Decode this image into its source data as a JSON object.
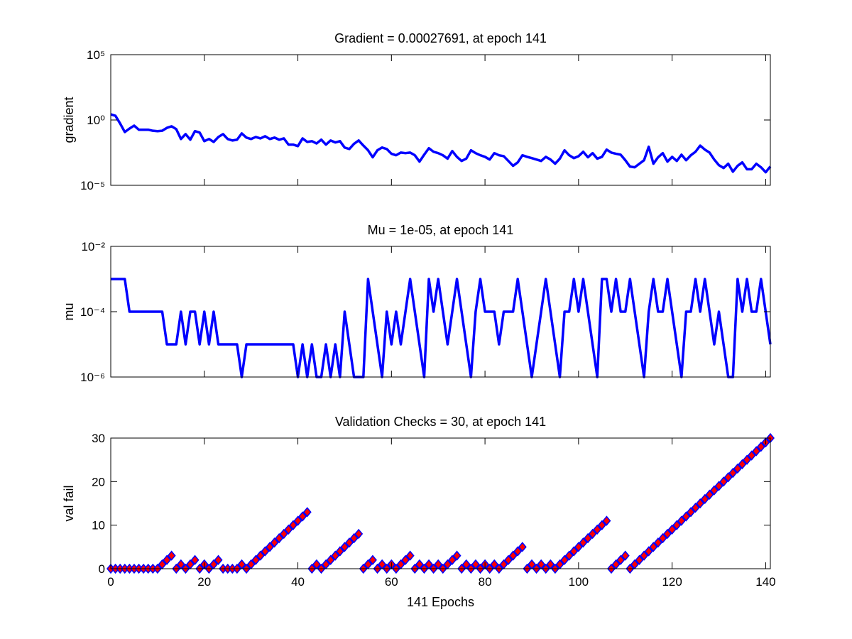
{
  "chart_data": [
    {
      "type": "line",
      "title": "Gradient = 0.00027691, at epoch 141",
      "y_label": "gradient",
      "yscale": "log",
      "xlim": [
        0,
        141
      ],
      "xticks": [
        0,
        20,
        40,
        60,
        80,
        100,
        120,
        140
      ],
      "xtick_labels": false,
      "ylim": [
        1e-05,
        100000
      ],
      "yticks": [
        {
          "value": 1e-05,
          "label": "10⁻⁵"
        },
        {
          "value": 1,
          "label": "10⁰"
        },
        {
          "value": 100000,
          "label": "10⁵"
        }
      ],
      "x": [
        0,
        1,
        2,
        3,
        4,
        5,
        6,
        7,
        8,
        9,
        10,
        11,
        12,
        13,
        14,
        15,
        16,
        17,
        18,
        19,
        20,
        21,
        22,
        23,
        24,
        25,
        26,
        27,
        28,
        29,
        30,
        31,
        32,
        33,
        34,
        35,
        36,
        37,
        38,
        39,
        40,
        41,
        42,
        43,
        44,
        45,
        46,
        47,
        48,
        49,
        50,
        51,
        52,
        53,
        54,
        55,
        56,
        57,
        58,
        59,
        60,
        61,
        62,
        63,
        64,
        65,
        66,
        67,
        68,
        69,
        70,
        71,
        72,
        73,
        74,
        75,
        76,
        77,
        78,
        79,
        80,
        81,
        82,
        83,
        84,
        85,
        86,
        87,
        88,
        89,
        90,
        91,
        92,
        93,
        94,
        95,
        96,
        97,
        98,
        99,
        100,
        101,
        102,
        103,
        104,
        105,
        106,
        107,
        108,
        109,
        110,
        111,
        112,
        113,
        114,
        115,
        116,
        117,
        118,
        119,
        120,
        121,
        122,
        123,
        124,
        125,
        126,
        127,
        128,
        129,
        130,
        131,
        132,
        133,
        134,
        135,
        136,
        137,
        138,
        139,
        140,
        141
      ],
      "series": [
        {
          "color": "#0000ff",
          "values": [
            2.7,
            2.1,
            0.54,
            0.12,
            0.22,
            0.37,
            0.18,
            0.18,
            0.18,
            0.15,
            0.14,
            0.15,
            0.25,
            0.33,
            0.2,
            0.035,
            0.083,
            0.031,
            0.14,
            0.11,
            0.024,
            0.035,
            0.021,
            0.05,
            0.083,
            0.035,
            0.027,
            0.031,
            0.094,
            0.045,
            0.035,
            0.05,
            0.039,
            0.057,
            0.035,
            0.045,
            0.031,
            0.039,
            0.013,
            0.013,
            0.01,
            0.039,
            0.021,
            0.024,
            0.016,
            0.031,
            0.013,
            0.027,
            0.019,
            0.024,
            0.0078,
            0.006,
            0.015,
            0.027,
            0.011,
            0.0048,
            0.0014,
            0.0048,
            0.0078,
            0.006,
            0.0026,
            0.002,
            0.0032,
            0.0029,
            0.0032,
            0.002,
            0.00065,
            0.0022,
            0.0069,
            0.0037,
            0.0029,
            0.002,
            0.0011,
            0.0042,
            0.0015,
            0.00073,
            0.0011,
            0.0048,
            0.0029,
            0.002,
            0.0015,
            0.00094,
            0.0029,
            0.002,
            0.0017,
            0.00073,
            0.00031,
            0.00057,
            0.002,
            0.0015,
            0.0012,
            0.00094,
            0.00073,
            0.0015,
            0.00094,
            0.00045,
            0.0011,
            0.0048,
            0.002,
            0.0012,
            0.0017,
            0.0037,
            0.0014,
            0.0029,
            0.0011,
            0.0015,
            0.0054,
            0.0032,
            0.0026,
            0.0022,
            0.00083,
            0.00027,
            0.00024,
            0.00045,
            0.00083,
            0.0089,
            0.00045,
            0.0014,
            0.0029,
            0.00065,
            0.0015,
            0.00073,
            0.0022,
            0.00083,
            0.002,
            0.0037,
            0.011,
            0.0054,
            0.0032,
            0.00094,
            0.00035,
            0.00021,
            0.00045,
            0.00011,
            0.00031,
            0.00057,
            0.00017,
            0.00017,
            0.00045,
            0.00024,
            0.0001,
            0.00027691
          ]
        }
      ]
    },
    {
      "type": "line",
      "title": "Mu = 1e-05, at epoch 141",
      "y_label": "mu",
      "yscale": "log",
      "xlim": [
        0,
        141
      ],
      "xticks": [
        0,
        20,
        40,
        60,
        80,
        100,
        120,
        140
      ],
      "xtick_labels": false,
      "ylim": [
        1e-06,
        0.01
      ],
      "yticks": [
        {
          "value": 1e-06,
          "label": "10⁻⁶"
        },
        {
          "value": 0.0001,
          "label": "10⁻⁴"
        },
        {
          "value": 0.01,
          "label": "10⁻²"
        }
      ],
      "x": [
        0,
        1,
        2,
        3,
        4,
        5,
        6,
        7,
        8,
        9,
        10,
        11,
        12,
        13,
        14,
        15,
        16,
        17,
        18,
        19,
        20,
        21,
        22,
        23,
        24,
        25,
        26,
        27,
        28,
        29,
        30,
        31,
        32,
        33,
        34,
        35,
        36,
        37,
        38,
        39,
        40,
        41,
        42,
        43,
        44,
        45,
        46,
        47,
        48,
        49,
        50,
        51,
        52,
        53,
        54,
        55,
        56,
        57,
        58,
        59,
        60,
        61,
        62,
        63,
        64,
        65,
        66,
        67,
        68,
        69,
        70,
        71,
        72,
        73,
        74,
        75,
        76,
        77,
        78,
        79,
        80,
        81,
        82,
        83,
        84,
        85,
        86,
        87,
        88,
        89,
        90,
        91,
        92,
        93,
        94,
        95,
        96,
        97,
        98,
        99,
        100,
        101,
        102,
        103,
        104,
        105,
        106,
        107,
        108,
        109,
        110,
        111,
        112,
        113,
        114,
        115,
        116,
        117,
        118,
        119,
        120,
        121,
        122,
        123,
        124,
        125,
        126,
        127,
        128,
        129,
        130,
        131,
        132,
        133,
        134,
        135,
        136,
        137,
        138,
        139,
        140,
        141
      ],
      "series": [
        {
          "color": "#0000ff",
          "values": [
            0.001,
            0.001,
            0.001,
            0.001,
            0.0001,
            0.0001,
            0.0001,
            0.0001,
            0.0001,
            0.0001,
            0.0001,
            0.0001,
            1e-05,
            1e-05,
            1e-05,
            0.0001,
            1e-05,
            0.0001,
            0.0001,
            1e-05,
            0.0001,
            1e-05,
            0.0001,
            1e-05,
            1e-05,
            1e-05,
            1e-05,
            1e-05,
            1e-06,
            1e-05,
            1e-05,
            1e-05,
            1e-05,
            1e-05,
            1e-05,
            1e-05,
            1e-05,
            1e-05,
            1e-05,
            1e-05,
            1e-06,
            1e-05,
            1e-06,
            1e-05,
            1e-06,
            1e-06,
            1e-05,
            1e-06,
            1e-05,
            1e-06,
            0.0001,
            1e-05,
            1e-06,
            1e-06,
            1e-06,
            0.001,
            0.0001,
            1e-05,
            1e-06,
            0.0001,
            1e-05,
            0.0001,
            1e-05,
            0.0001,
            0.001,
            0.0001,
            1e-05,
            1e-06,
            0.001,
            0.0001,
            0.001,
            0.0001,
            1e-05,
            0.0001,
            0.001,
            0.0001,
            1e-05,
            1e-06,
            0.0001,
            0.001,
            0.0001,
            0.0001,
            0.0001,
            1e-05,
            0.0001,
            0.0001,
            0.0001,
            0.001,
            0.0001,
            1e-05,
            1e-06,
            1e-05,
            0.0001,
            0.001,
            0.0001,
            1e-05,
            1e-06,
            0.0001,
            0.0001,
            0.001,
            0.0001,
            0.001,
            0.0001,
            1e-05,
            1e-06,
            0.001,
            0.001,
            0.0001,
            0.001,
            0.0001,
            0.0001,
            0.001,
            0.0001,
            1e-05,
            1e-06,
            0.0001,
            0.001,
            0.0001,
            0.0001,
            0.001,
            0.0001,
            1e-05,
            1e-06,
            0.0001,
            0.0001,
            0.001,
            0.0001,
            0.001,
            0.0001,
            1e-05,
            0.0001,
            1e-05,
            1e-06,
            1e-06,
            0.001,
            0.0001,
            0.001,
            0.0001,
            0.0001,
            0.001,
            0.0001,
            1e-05
          ]
        }
      ]
    },
    {
      "type": "scatter",
      "title": "Validation Checks = 30, at epoch 141",
      "y_label": "val fail",
      "x_label": "141 Epochs",
      "marker": "diamond",
      "marker_face_color": "#ff0000",
      "xlim": [
        0,
        141
      ],
      "xticks": [
        0,
        20,
        40,
        60,
        80,
        100,
        120,
        140
      ],
      "xtick_labels": true,
      "ylim": [
        0,
        30
      ],
      "yticks": [
        0,
        10,
        20,
        30
      ],
      "x": [
        0,
        1,
        2,
        3,
        4,
        5,
        6,
        7,
        8,
        9,
        10,
        11,
        12,
        13,
        14,
        15,
        16,
        17,
        18,
        19,
        20,
        21,
        22,
        23,
        24,
        25,
        26,
        27,
        28,
        29,
        30,
        31,
        32,
        33,
        34,
        35,
        36,
        37,
        38,
        39,
        40,
        41,
        42,
        43,
        44,
        45,
        46,
        47,
        48,
        49,
        50,
        51,
        52,
        53,
        54,
        55,
        56,
        57,
        58,
        59,
        60,
        61,
        62,
        63,
        64,
        65,
        66,
        67,
        68,
        69,
        70,
        71,
        72,
        73,
        74,
        75,
        76,
        77,
        78,
        79,
        80,
        81,
        82,
        83,
        84,
        85,
        86,
        87,
        88,
        89,
        90,
        91,
        92,
        93,
        94,
        95,
        96,
        97,
        98,
        99,
        100,
        101,
        102,
        103,
        104,
        105,
        106,
        107,
        108,
        109,
        110,
        111,
        112,
        113,
        114,
        115,
        116,
        117,
        118,
        119,
        120,
        121,
        122,
        123,
        124,
        125,
        126,
        127,
        128,
        129,
        130,
        131,
        132,
        133,
        134,
        135,
        136,
        137,
        138,
        139,
        140,
        141
      ],
      "series": [
        {
          "color": "#0000ff",
          "values": [
            0,
            0,
            0,
            0,
            0,
            0,
            0,
            0,
            0,
            0,
            0,
            1,
            2,
            3,
            0,
            1,
            0,
            1,
            2,
            0,
            1,
            0,
            1,
            2,
            0,
            0,
            0,
            0,
            1,
            0,
            1,
            2,
            3,
            4,
            5,
            6,
            7,
            8,
            9,
            10,
            11,
            12,
            13,
            0,
            1,
            0,
            1,
            2,
            3,
            4,
            5,
            6,
            7,
            8,
            0,
            1,
            2,
            0,
            1,
            0,
            1,
            0,
            1,
            2,
            3,
            0,
            1,
            0,
            1,
            0,
            1,
            0,
            1,
            2,
            3,
            0,
            1,
            0,
            1,
            0,
            1,
            0,
            1,
            0,
            1,
            2,
            3,
            4,
            5,
            0,
            1,
            0,
            1,
            0,
            1,
            0,
            1,
            2,
            3,
            4,
            5,
            6,
            7,
            8,
            9,
            10,
            11,
            0,
            1,
            2,
            3,
            0,
            1,
            2,
            3,
            4,
            5,
            6,
            7,
            8,
            9,
            10,
            11,
            12,
            13,
            14,
            15,
            16,
            17,
            18,
            19,
            20,
            21,
            22,
            23,
            24,
            25,
            26,
            27,
            28,
            29,
            30
          ]
        }
      ]
    }
  ]
}
